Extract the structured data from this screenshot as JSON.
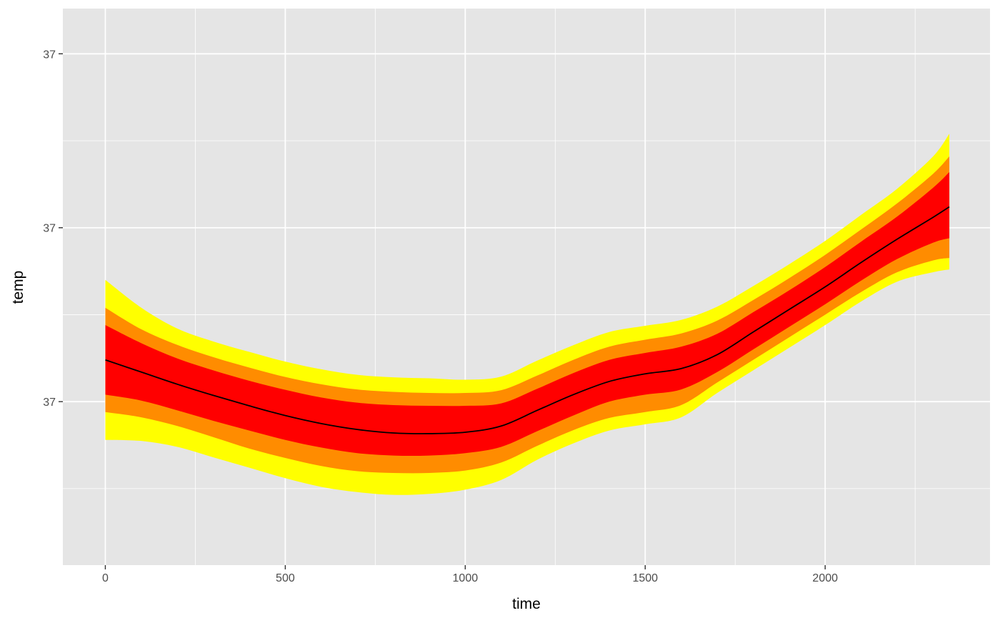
{
  "chart_data": {
    "type": "area",
    "title": "",
    "xlabel": "time",
    "ylabel": "temp",
    "xlim": [
      -118,
      2458
    ],
    "ylim": [
      -0.47,
      1.13
    ],
    "x_ticks": [
      0,
      500,
      1000,
      1500,
      2000
    ],
    "x_tick_labels": [
      "0",
      "500",
      "1000",
      "1500",
      "2000"
    ],
    "y_ticks": [
      0,
      0.5,
      1
    ],
    "y_tick_labels": [
      "37",
      "37",
      "37"
    ],
    "grid": true,
    "legend": "none",
    "colors": {
      "panel": "#e5e5e5",
      "grid": "#ffffff",
      "outer_band": "#ffff00",
      "middle_band": "#ff8c00",
      "inner_band": "#ff0000",
      "median_line": "#000000"
    },
    "x": [
      0,
      100,
      200,
      300,
      400,
      500,
      600,
      700,
      800,
      900,
      1000,
      1100,
      1200,
      1300,
      1400,
      1500,
      1600,
      1700,
      1800,
      1900,
      2000,
      2100,
      2200,
      2300,
      2345
    ],
    "series": [
      {
        "values": [
          0.12,
          0.085,
          0.05,
          0.018,
          -0.012,
          -0.04,
          -0.063,
          -0.08,
          -0.09,
          -0.092,
          -0.088,
          -0.07,
          -0.025,
          0.02,
          0.058,
          0.08,
          0.095,
          0.135,
          0.2,
          0.265,
          0.33,
          0.4,
          0.467,
          0.53,
          0.56
        ]
      },
      {
        "values": [
          0.02,
          0.003,
          -0.025,
          -0.055,
          -0.083,
          -0.11,
          -0.132,
          -0.148,
          -0.155,
          -0.155,
          -0.148,
          -0.13,
          -0.085,
          -0.04,
          0.0,
          0.02,
          0.035,
          0.085,
          0.15,
          0.215,
          0.28,
          0.348,
          0.41,
          0.457,
          0.47
        ]
      },
      {
        "values": [
          0.22,
          0.168,
          0.124,
          0.09,
          0.06,
          0.034,
          0.012,
          -0.003,
          -0.01,
          -0.012,
          -0.012,
          -0.005,
          0.037,
          0.082,
          0.12,
          0.14,
          0.158,
          0.195,
          0.257,
          0.32,
          0.387,
          0.46,
          0.532,
          0.615,
          0.66
        ]
      },
      {
        "values": [
          -0.03,
          -0.045,
          -0.07,
          -0.102,
          -0.135,
          -0.162,
          -0.185,
          -0.2,
          -0.205,
          -0.205,
          -0.198,
          -0.175,
          -0.127,
          -0.082,
          -0.047,
          -0.03,
          -0.01,
          0.055,
          0.12,
          0.185,
          0.25,
          0.315,
          0.372,
          0.406,
          0.413
        ]
      },
      {
        "values": [
          0.27,
          0.208,
          0.163,
          0.128,
          0.098,
          0.071,
          0.05,
          0.035,
          0.028,
          0.025,
          0.025,
          0.033,
          0.075,
          0.12,
          0.158,
          0.178,
          0.196,
          0.233,
          0.292,
          0.355,
          0.422,
          0.495,
          0.57,
          0.655,
          0.705
        ]
      },
      {
        "values": [
          -0.11,
          -0.113,
          -0.13,
          -0.16,
          -0.19,
          -0.22,
          -0.245,
          -0.26,
          -0.268,
          -0.265,
          -0.253,
          -0.225,
          -0.167,
          -0.12,
          -0.083,
          -0.065,
          -0.045,
          0.025,
          0.09,
          0.155,
          0.22,
          0.288,
          0.345,
          0.372,
          0.38
        ]
      },
      {
        "values": [
          0.35,
          0.27,
          0.21,
          0.173,
          0.143,
          0.115,
          0.093,
          0.077,
          0.07,
          0.067,
          0.063,
          0.072,
          0.118,
          0.162,
          0.2,
          0.218,
          0.235,
          0.273,
          0.332,
          0.395,
          0.462,
          0.537,
          0.612,
          0.705,
          0.77
        ]
      }
    ]
  }
}
